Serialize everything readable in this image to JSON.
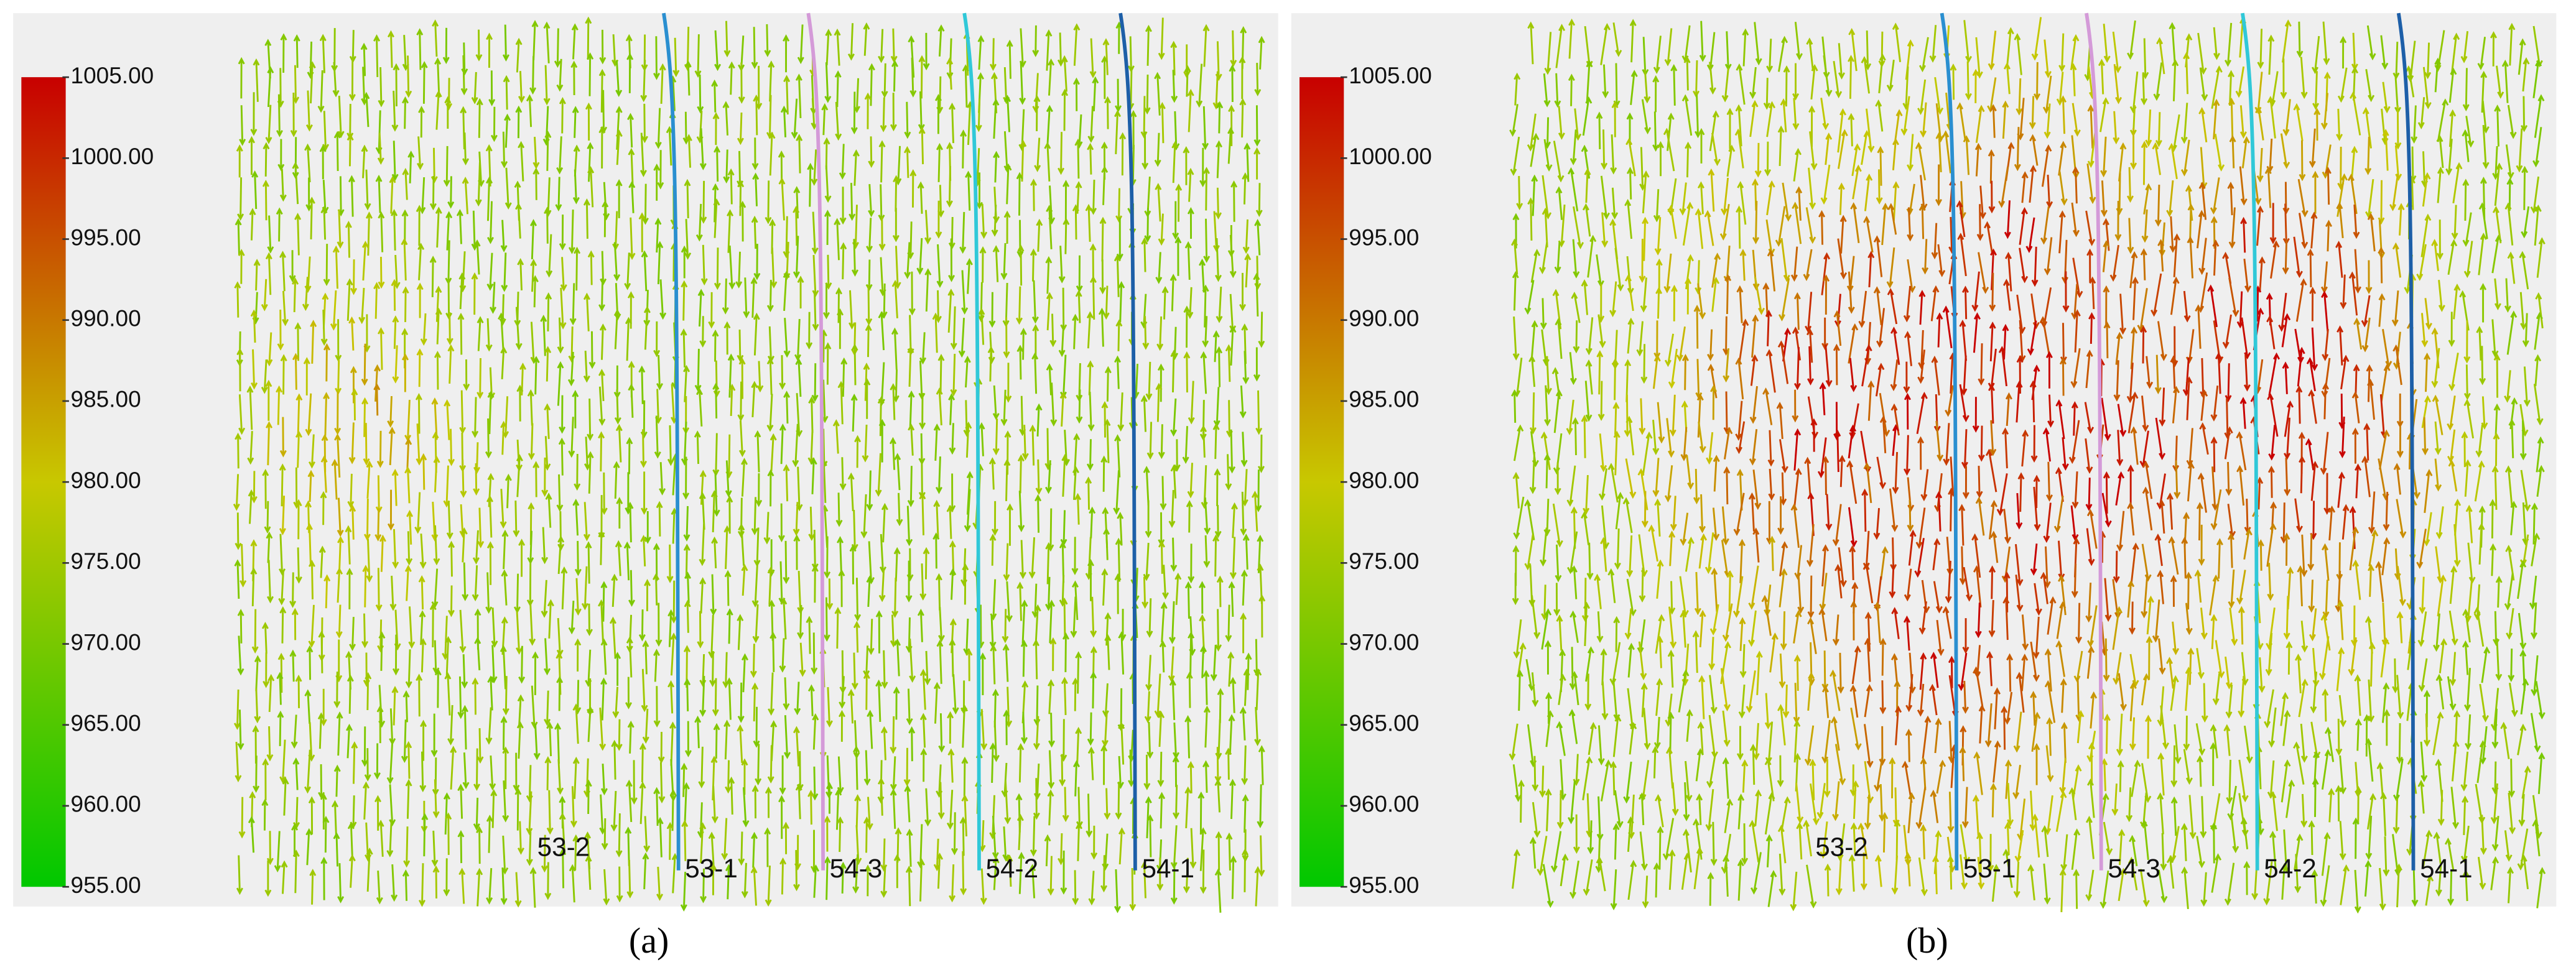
{
  "panels": [
    {
      "label": "(a)",
      "colorbar": {
        "lim": [
          955,
          1005
        ],
        "ticks": [
          {
            "value": 1005,
            "label": "1005.00"
          },
          {
            "value": 1000,
            "label": "1000.00"
          },
          {
            "value": 995,
            "label": "995.00"
          },
          {
            "value": 990,
            "label": "990.00"
          },
          {
            "value": 985,
            "label": "985.00"
          },
          {
            "value": 980,
            "label": "980.00"
          },
          {
            "value": 975,
            "label": "975.00"
          },
          {
            "value": 970,
            "label": "970.00"
          },
          {
            "value": 965,
            "label": "965.00"
          },
          {
            "value": 960,
            "label": "960.00"
          },
          {
            "value": 955,
            "label": "955.00"
          }
        ]
      },
      "wells": [
        "53-2",
        "53-1",
        "54-3",
        "54-2",
        "54-1"
      ]
    },
    {
      "label": "(b)",
      "colorbar": {
        "lim": [
          955,
          1005
        ],
        "ticks": [
          {
            "value": 1005,
            "label": "1005.00"
          },
          {
            "value": 1000,
            "label": "1000.00"
          },
          {
            "value": 995,
            "label": "995.00"
          },
          {
            "value": 990,
            "label": "990.00"
          },
          {
            "value": 985,
            "label": "985.00"
          },
          {
            "value": 980,
            "label": "980.00"
          },
          {
            "value": 975,
            "label": "975.00"
          },
          {
            "value": 970,
            "label": "970.00"
          },
          {
            "value": 965,
            "label": "965.00"
          },
          {
            "value": 960,
            "label": "960.00"
          },
          {
            "value": 955,
            "label": "955.00"
          }
        ]
      },
      "wells": [
        "53-2",
        "53-1",
        "54-3",
        "54-2",
        "54-1"
      ]
    }
  ]
}
